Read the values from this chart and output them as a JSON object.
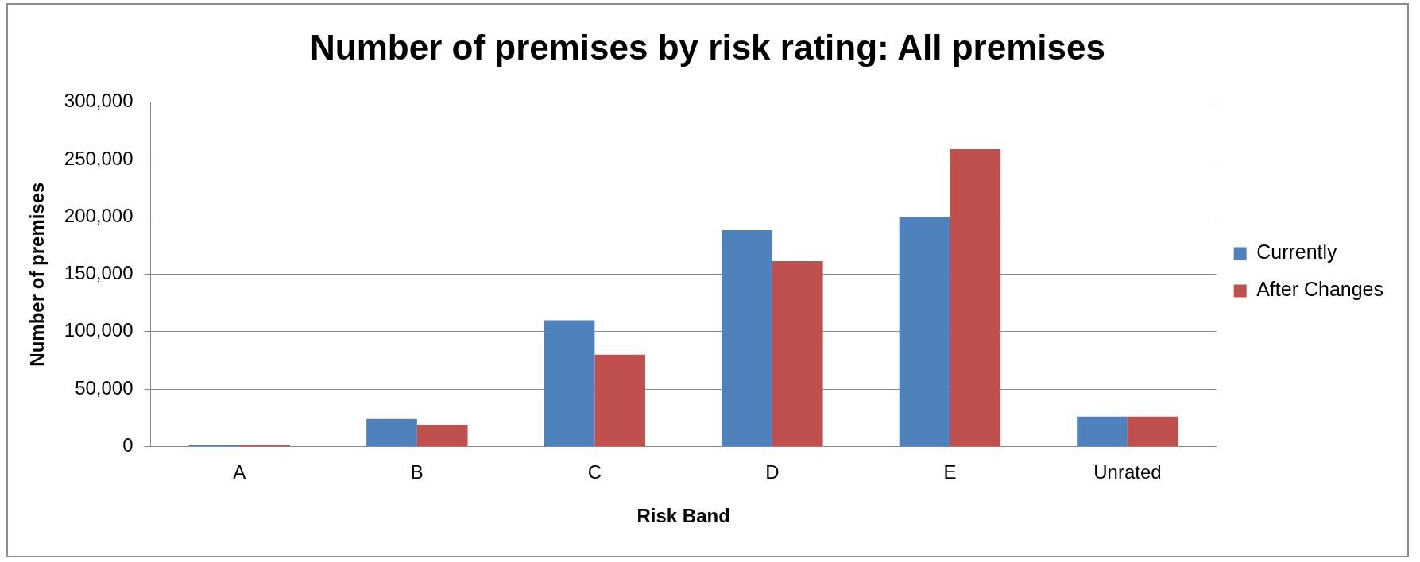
{
  "chart_data": {
    "type": "bar",
    "title": "Number of premises by risk rating: All premises",
    "xlabel": "Risk Band",
    "ylabel": "Number of premises",
    "categories": [
      "A",
      "B",
      "C",
      "D",
      "E",
      "Unrated"
    ],
    "series": [
      {
        "name": "Currently",
        "color": "#4f81bd",
        "values": [
          1500,
          24000,
          110000,
          188500,
          200000,
          26000
        ]
      },
      {
        "name": "After Changes",
        "color": "#c0504d",
        "values": [
          1500,
          19000,
          80000,
          161500,
          259000,
          26000
        ]
      }
    ],
    "ylim": [
      0,
      300000
    ],
    "yticks": [
      0,
      {
        "value": 50000,
        "label": "50,000"
      },
      {
        "value": 100000,
        "label": "100,000"
      },
      {
        "value": 150000,
        "label": "150,000"
      },
      {
        "value": 200000,
        "label": "200,000"
      },
      {
        "value": 250000,
        "label": "250,000"
      },
      {
        "value": 300000,
        "label": "300,000"
      }
    ],
    "grid": "y",
    "legend": "right"
  }
}
